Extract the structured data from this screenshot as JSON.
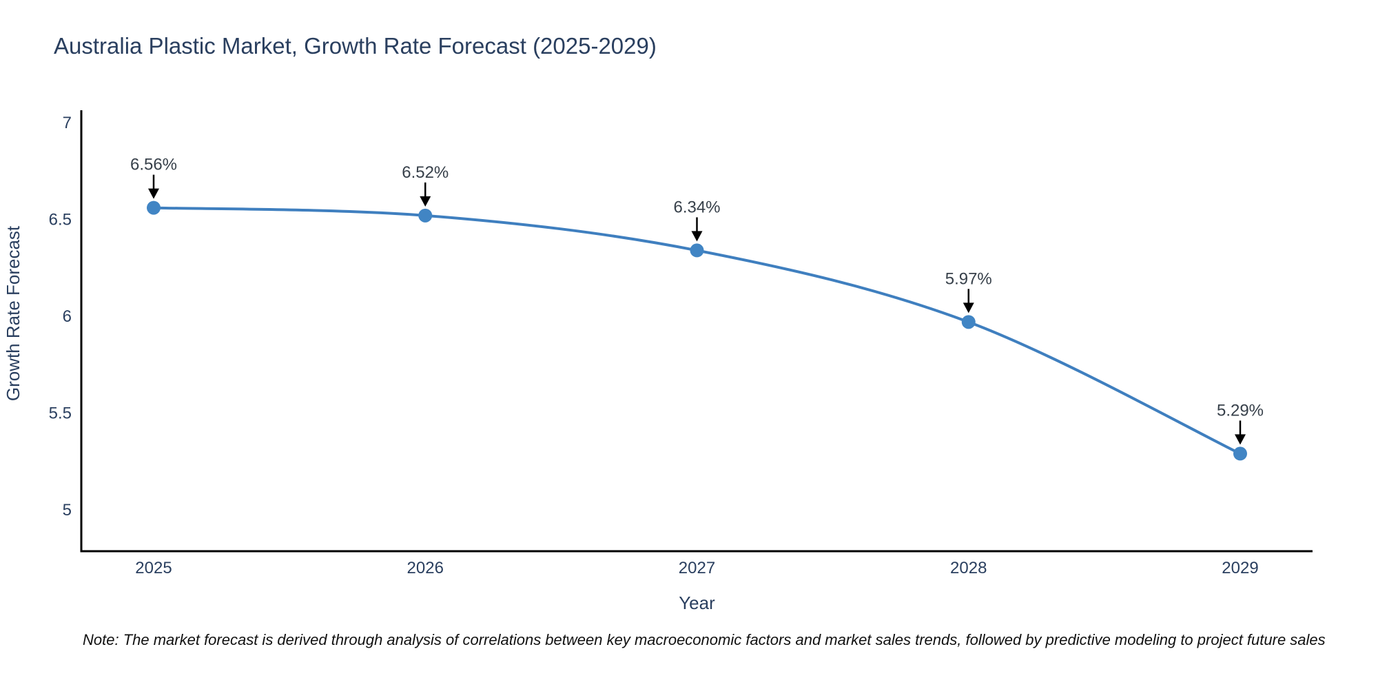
{
  "title": "Australia Plastic Market, Growth Rate Forecast (2025-2029)",
  "note": "Note: The market forecast is derived through analysis of correlations between key macroeconomic factors and market sales trends, followed by predictive modeling to project future sales",
  "colors": {
    "background": "#ffffff",
    "line": "#3f7fbf",
    "marker": "#4185c4",
    "axis_line": "#000000",
    "axis_text": "#2a3f5f",
    "annotation_text": "#37404a",
    "arrow": "#000000"
  },
  "chart_data": {
    "type": "line",
    "title": "Australia Plastic Market, Growth Rate Forecast (2025-2029)",
    "categories": [
      "2025",
      "2026",
      "2027",
      "2028",
      "2029"
    ],
    "series": [
      {
        "name": "Growth Rate Forecast",
        "values": [
          6.56,
          6.52,
          6.34,
          5.97,
          5.29
        ]
      }
    ],
    "point_labels": [
      "6.56%",
      "6.52%",
      "6.34%",
      "5.97%",
      "5.29%"
    ],
    "xlabel": "Year",
    "ylabel": "Growth Rate Forecast",
    "ylim": [
      4.786,
      7.064
    ],
    "yticks": [
      7,
      6.5,
      6,
      5.5,
      5
    ],
    "ytick_labels": [
      "7",
      "6.5",
      "6",
      "5.5",
      "5"
    ],
    "grid": false,
    "legend": "none",
    "line_shape": "spline",
    "marker_size": 10,
    "annotations_arrow": true
  }
}
